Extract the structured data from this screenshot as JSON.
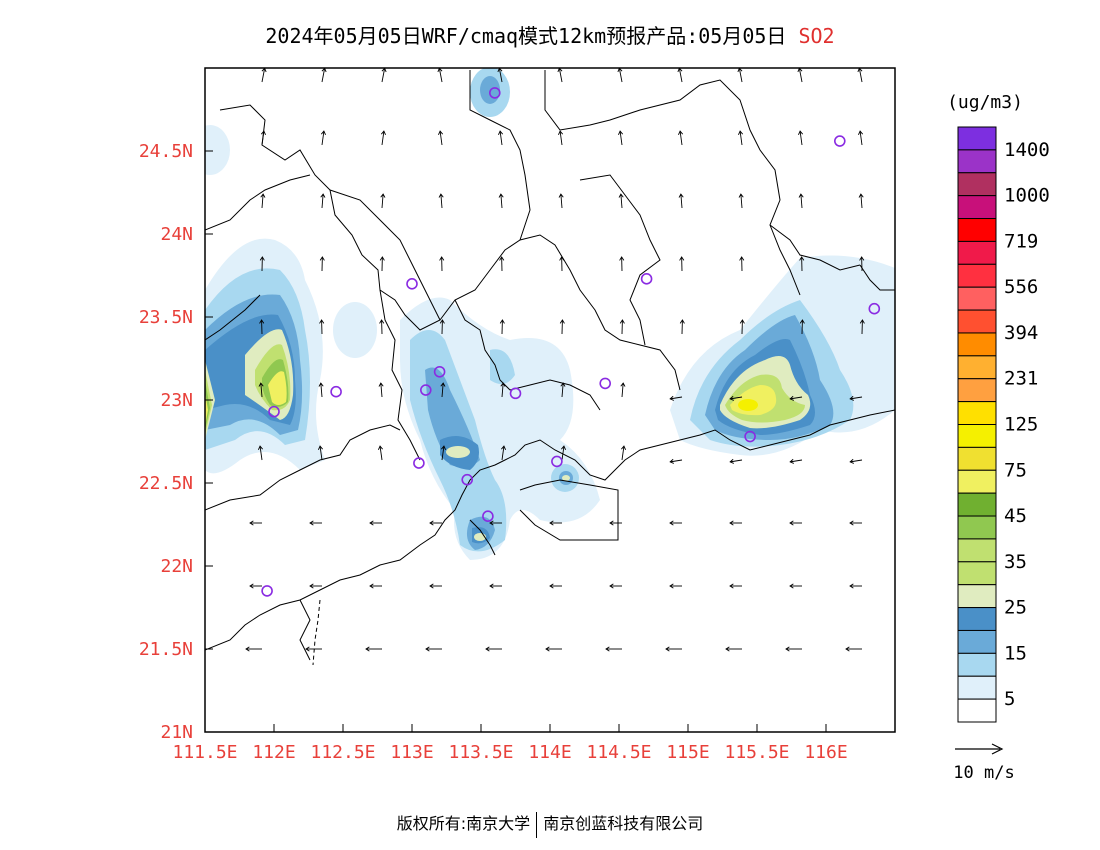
{
  "header": {
    "title_main": "2024年05月05日WRF/cmaq模式12km预报产品:05月05日",
    "species": "SO2"
  },
  "map": {
    "lon_labels": [
      "111.5E",
      "112E",
      "112.5E",
      "113E",
      "113.5E",
      "114E",
      "114.5E",
      "115E",
      "115.5E",
      "116E"
    ],
    "lat_labels": [
      "21N",
      "21.5N",
      "22N",
      "22.5N",
      "23N",
      "23.5N",
      "24N",
      "24.5N"
    ],
    "axis_label_color": "#e8403a",
    "extent": {
      "lon_min": 111.5,
      "lon_max": 116.5,
      "lat_min": 21.0,
      "lat_max": 25.0
    },
    "stations": [
      [
        113.6,
        24.85
      ],
      [
        116.1,
        24.56
      ],
      [
        113.0,
        23.7
      ],
      [
        114.7,
        23.73
      ],
      [
        116.35,
        23.55
      ],
      [
        112.45,
        23.05
      ],
      [
        113.2,
        23.17
      ],
      [
        113.1,
        23.06
      ],
      [
        113.75,
        23.04
      ],
      [
        114.4,
        23.1
      ],
      [
        112.0,
        22.93
      ],
      [
        115.45,
        22.78
      ],
      [
        113.05,
        22.62
      ],
      [
        113.4,
        22.52
      ],
      [
        114.05,
        22.63
      ],
      [
        113.55,
        22.3
      ],
      [
        111.95,
        21.85
      ]
    ]
  },
  "legend": {
    "unit": "(ug/m3)",
    "labels": [
      "1400",
      "1000",
      "719",
      "556",
      "394",
      "231",
      "125",
      "75",
      "45",
      "35",
      "25",
      "15",
      "5"
    ],
    "colors_top_to_bottom": [
      "#7d2fe0",
      "#9b33c8",
      "#b03060",
      "#c8107a",
      "#ff0000",
      "#f01a4a",
      "#ff3040",
      "#ff6060",
      "#ff5030",
      "#ff8c00",
      "#ffb030",
      "#ffa040",
      "#ffe000",
      "#f5f000",
      "#f0e030",
      "#f0f060",
      "#70b030",
      "#90c850",
      "#c0e070",
      "#c0e070",
      "#e0ecc0",
      "#4a90c8",
      "#6aaad8",
      "#a8d8f0",
      "#e0f0fa",
      "#ffffff"
    ],
    "wind_label": "10 m/s"
  },
  "footer": {
    "left": "版权所有:南京大学",
    "right": "南京创蓝科技有限公司"
  }
}
